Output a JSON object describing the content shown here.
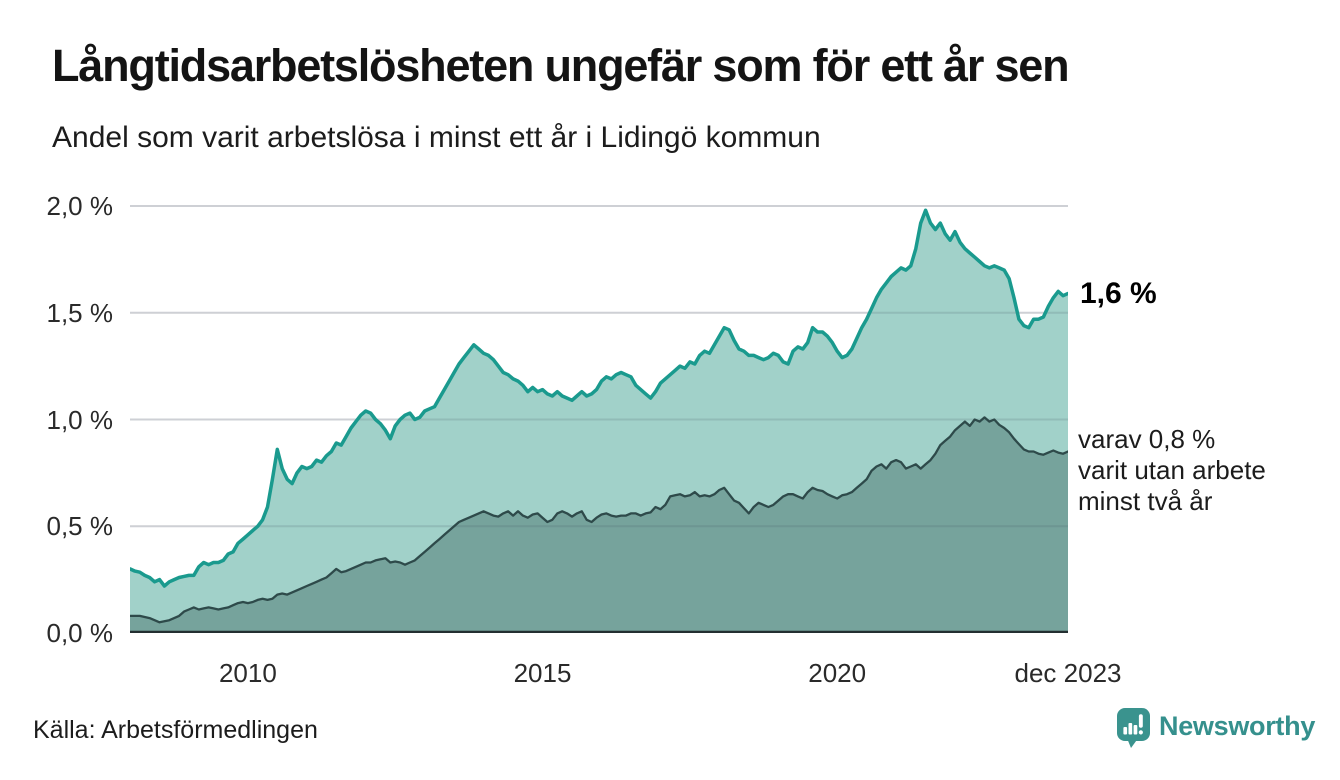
{
  "header": {
    "title": "Långtidsarbetslösheten ungefär som för ett år sen",
    "subtitle": "Andel som varit arbetslösa i minst ett år i Lidingö kommun"
  },
  "footer": {
    "source": "Källa: Arbetsförmedlingen",
    "brand": "Newsworthy"
  },
  "annotations": {
    "total_end_label": "1,6 %",
    "two_year_end_lines": [
      "varav 0,8 %",
      "varit utan arbete",
      "minst två år"
    ]
  },
  "colors": {
    "total_line": "#1a9a8e",
    "total_fill": "rgba(137,198,188,0.8)",
    "two_year_line": "#2e4a4a",
    "two_year_fill": "rgba(54,94,90,0.40)",
    "grid": "#e4e4e7",
    "grid_overlay": "rgba(80,95,105,0.14)",
    "baseline": "#232f31",
    "brand_teal": "#3a938e"
  },
  "chart_data": {
    "type": "area",
    "title": "Långtidsarbetslösheten ungefär som för ett år sen",
    "subtitle": "Andel som varit arbetslösa i minst ett år i Lidingö kommun",
    "x_interval": "monthly",
    "x_start": "2008-01",
    "x_end": "2023-12",
    "ylim": [
      0,
      2.0
    ],
    "grid": true,
    "legend_position": "right-end-labels",
    "y_ticks": [
      {
        "label": "2,0 %",
        "value": 2.0
      },
      {
        "label": "1,5 %",
        "value": 1.5
      },
      {
        "label": "1,0 %",
        "value": 1.0
      },
      {
        "label": "0,5 %",
        "value": 0.5
      },
      {
        "label": "0,0 %",
        "value": 0.0
      }
    ],
    "x_ticks": [
      {
        "label": "2010",
        "month_index": 24
      },
      {
        "label": "2015",
        "month_index": 84
      },
      {
        "label": "2020",
        "month_index": 144
      },
      {
        "label": "dec 2023",
        "month_index": 191
      }
    ],
    "series": [
      {
        "name": "long_term_total",
        "end_label": "1,6 %",
        "last_value": 1.6,
        "values": [
          0.3,
          0.29,
          0.285,
          0.27,
          0.26,
          0.24,
          0.25,
          0.22,
          0.24,
          0.25,
          0.26,
          0.265,
          0.27,
          0.27,
          0.31,
          0.33,
          0.32,
          0.33,
          0.33,
          0.34,
          0.37,
          0.38,
          0.42,
          0.44,
          0.46,
          0.48,
          0.5,
          0.53,
          0.59,
          0.72,
          0.86,
          0.77,
          0.72,
          0.7,
          0.75,
          0.78,
          0.77,
          0.78,
          0.81,
          0.8,
          0.83,
          0.85,
          0.89,
          0.88,
          0.92,
          0.96,
          0.99,
          1.02,
          1.04,
          1.03,
          1.0,
          0.98,
          0.95,
          0.91,
          0.97,
          1.0,
          1.02,
          1.03,
          1.0,
          1.01,
          1.04,
          1.05,
          1.06,
          1.1,
          1.14,
          1.18,
          1.22,
          1.26,
          1.29,
          1.32,
          1.35,
          1.33,
          1.31,
          1.3,
          1.28,
          1.25,
          1.22,
          1.21,
          1.19,
          1.18,
          1.16,
          1.13,
          1.15,
          1.13,
          1.14,
          1.12,
          1.11,
          1.13,
          1.11,
          1.1,
          1.09,
          1.11,
          1.13,
          1.11,
          1.12,
          1.14,
          1.18,
          1.2,
          1.19,
          1.21,
          1.22,
          1.21,
          1.2,
          1.16,
          1.14,
          1.12,
          1.1,
          1.13,
          1.17,
          1.19,
          1.21,
          1.23,
          1.25,
          1.24,
          1.27,
          1.26,
          1.3,
          1.32,
          1.31,
          1.35,
          1.39,
          1.43,
          1.42,
          1.37,
          1.33,
          1.32,
          1.3,
          1.3,
          1.29,
          1.28,
          1.29,
          1.31,
          1.3,
          1.27,
          1.26,
          1.32,
          1.34,
          1.33,
          1.36,
          1.43,
          1.41,
          1.41,
          1.39,
          1.36,
          1.32,
          1.29,
          1.3,
          1.33,
          1.38,
          1.43,
          1.47,
          1.52,
          1.57,
          1.61,
          1.64,
          1.67,
          1.69,
          1.71,
          1.7,
          1.72,
          1.8,
          1.92,
          1.98,
          1.92,
          1.89,
          1.92,
          1.87,
          1.84,
          1.88,
          1.83,
          1.8,
          1.78,
          1.76,
          1.74,
          1.72,
          1.71,
          1.72,
          1.71,
          1.7,
          1.66,
          1.57,
          1.47,
          1.44,
          1.43,
          1.47,
          1.47,
          1.48,
          1.53,
          1.57,
          1.6,
          1.58,
          1.59
        ]
      },
      {
        "name": "two_plus_years",
        "end_label": "varav 0,8 % varit utan arbete minst två år",
        "last_value": 0.8,
        "values": [
          0.08,
          0.08,
          0.08,
          0.075,
          0.07,
          0.06,
          0.05,
          0.055,
          0.06,
          0.07,
          0.08,
          0.1,
          0.11,
          0.12,
          0.11,
          0.115,
          0.12,
          0.115,
          0.11,
          0.115,
          0.12,
          0.13,
          0.14,
          0.145,
          0.14,
          0.145,
          0.155,
          0.16,
          0.155,
          0.16,
          0.18,
          0.185,
          0.18,
          0.19,
          0.2,
          0.21,
          0.22,
          0.23,
          0.24,
          0.25,
          0.26,
          0.28,
          0.3,
          0.285,
          0.29,
          0.3,
          0.31,
          0.32,
          0.33,
          0.33,
          0.34,
          0.345,
          0.35,
          0.33,
          0.335,
          0.33,
          0.32,
          0.33,
          0.34,
          0.36,
          0.38,
          0.4,
          0.42,
          0.44,
          0.46,
          0.48,
          0.5,
          0.52,
          0.53,
          0.54,
          0.55,
          0.56,
          0.57,
          0.56,
          0.55,
          0.545,
          0.56,
          0.57,
          0.55,
          0.57,
          0.55,
          0.54,
          0.555,
          0.56,
          0.54,
          0.52,
          0.53,
          0.56,
          0.57,
          0.56,
          0.545,
          0.56,
          0.57,
          0.53,
          0.52,
          0.54,
          0.555,
          0.56,
          0.55,
          0.545,
          0.55,
          0.55,
          0.56,
          0.56,
          0.55,
          0.56,
          0.565,
          0.59,
          0.58,
          0.6,
          0.64,
          0.645,
          0.65,
          0.64,
          0.645,
          0.66,
          0.64,
          0.645,
          0.64,
          0.65,
          0.67,
          0.68,
          0.65,
          0.62,
          0.61,
          0.585,
          0.56,
          0.59,
          0.61,
          0.6,
          0.59,
          0.6,
          0.62,
          0.64,
          0.65,
          0.65,
          0.64,
          0.63,
          0.66,
          0.68,
          0.67,
          0.665,
          0.65,
          0.64,
          0.63,
          0.645,
          0.65,
          0.66,
          0.68,
          0.7,
          0.72,
          0.76,
          0.78,
          0.79,
          0.77,
          0.8,
          0.81,
          0.8,
          0.77,
          0.78,
          0.79,
          0.77,
          0.79,
          0.81,
          0.84,
          0.88,
          0.9,
          0.92,
          0.95,
          0.97,
          0.99,
          0.97,
          1.0,
          0.99,
          1.01,
          0.99,
          1.0,
          0.975,
          0.96,
          0.94,
          0.91,
          0.885,
          0.86,
          0.85,
          0.85,
          0.84,
          0.835,
          0.845,
          0.855,
          0.845,
          0.84,
          0.85
        ]
      }
    ]
  }
}
